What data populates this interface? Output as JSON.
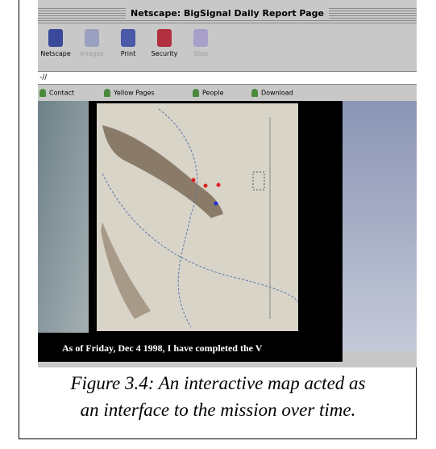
{
  "window": {
    "title": "Netscape: BigSignal Daily Report Page",
    "toolbar": [
      "Netscape",
      "Images",
      "Print",
      "Security",
      "Stop"
    ],
    "location": "-//",
    "bookmarks": [
      "Contact",
      "Yellow Pages",
      "People",
      "Download"
    ]
  },
  "map": {
    "caption": "As of Friday, Dec 4 1998, I have completed the V"
  },
  "figure": {
    "caption": [
      "Figure 3.4: An interactive map acted as",
      "an interface to the mission over time."
    ]
  }
}
